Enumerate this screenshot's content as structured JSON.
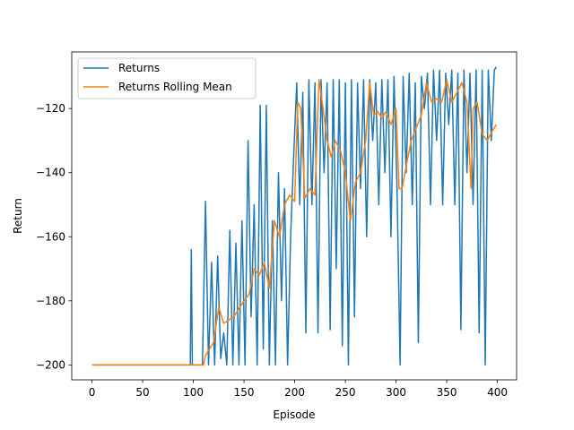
{
  "chart_data": {
    "type": "line",
    "x_label": "Episode",
    "y_label": "Return",
    "xlim": [
      -19.95,
      418.95
    ],
    "ylim": [
      -204.65,
      -102.35
    ],
    "xticks": [
      0,
      50,
      100,
      150,
      200,
      250,
      300,
      350,
      400
    ],
    "yticks": [
      {
        "value": -200,
        "label": "−200"
      },
      {
        "value": -180,
        "label": "−180"
      },
      {
        "value": -160,
        "label": "−160"
      },
      {
        "value": -140,
        "label": "−140"
      },
      {
        "value": -120,
        "label": "−120"
      }
    ],
    "legend": "upper left",
    "series": [
      {
        "name": "Returns",
        "color": "#1f77b4",
        "x": [
          0,
          97,
          98,
          99,
          100,
          103,
          106,
          109,
          112,
          115,
          118,
          121,
          124,
          127,
          130,
          133,
          136,
          139,
          142,
          145,
          148,
          151,
          154,
          157,
          160,
          163,
          166,
          169,
          172,
          175,
          178,
          181,
          184,
          187,
          190,
          193,
          196,
          199,
          202,
          205,
          208,
          211,
          214,
          217,
          220,
          223,
          226,
          229,
          232,
          235,
          238,
          241,
          244,
          247,
          250,
          253,
          256,
          259,
          262,
          265,
          268,
          271,
          274,
          277,
          280,
          283,
          286,
          289,
          292,
          295,
          298,
          301,
          304,
          307,
          310,
          313,
          316,
          319,
          322,
          325,
          328,
          331,
          334,
          337,
          340,
          343,
          346,
          349,
          352,
          355,
          358,
          361,
          364,
          367,
          370,
          373,
          376,
          379,
          382,
          385,
          388,
          391,
          394,
          397,
          399
        ],
        "values": [
          -200,
          -200,
          -164,
          -200,
          -200,
          -200,
          -200,
          -200,
          -149,
          -200,
          -168,
          -200,
          -166,
          -198,
          -190,
          -200,
          -158,
          -200,
          -162,
          -200,
          -155,
          -200,
          -130,
          -185,
          -150,
          -200,
          -119,
          -195,
          -119,
          -200,
          -155,
          -200,
          -140,
          -180,
          -145,
          -200,
          -160,
          -135,
          -112,
          -150,
          -115,
          -190,
          -111,
          -150,
          -112,
          -190,
          -111,
          -140,
          -112,
          -189,
          -111,
          -170,
          -111,
          -194,
          -112,
          -200,
          -111,
          -185,
          -112,
          -145,
          -111,
          -160,
          -111,
          -130,
          -112,
          -150,
          -111,
          -140,
          -111,
          -160,
          -110,
          -145,
          -200,
          -110,
          -140,
          -109,
          -150,
          -112,
          -193,
          -110,
          -120,
          -109,
          -150,
          -108,
          -130,
          -108,
          -150,
          -109,
          -125,
          -108,
          -150,
          -109,
          -189,
          -108,
          -140,
          -109,
          -150,
          -108,
          -190,
          -108,
          -200,
          -108,
          -130,
          -108,
          -107
        ]
      },
      {
        "name": "Returns Rolling Mean",
        "color": "#ff7f0e",
        "x": [
          0,
          110,
          112,
          120,
          125,
          130,
          140,
          150,
          155,
          160,
          165,
          170,
          175,
          180,
          185,
          190,
          195,
          200,
          203,
          206,
          210,
          215,
          220,
          224,
          228,
          232,
          236,
          240,
          245,
          250,
          255,
          260,
          265,
          270,
          274,
          278,
          282,
          286,
          290,
          295,
          300,
          303,
          306,
          310,
          315,
          320,
          325,
          330,
          335,
          340,
          345,
          350,
          355,
          360,
          365,
          370,
          374,
          376,
          380,
          385,
          390,
          395,
          399
        ],
        "values": [
          -200,
          -200,
          -197,
          -193,
          -182,
          -187,
          -185,
          -180,
          -178,
          -170,
          -172,
          -168,
          -176,
          -155,
          -160,
          -150,
          -147,
          -149,
          -118,
          -120,
          -148,
          -145,
          -147,
          -111,
          -120,
          -130,
          -135,
          -130,
          -133,
          -140,
          -155,
          -143,
          -140,
          -130,
          -112,
          -122,
          -121,
          -123,
          -121,
          -125,
          -120,
          -145,
          -145,
          -138,
          -130,
          -126,
          -122,
          -112,
          -118,
          -117,
          -118,
          -111,
          -118,
          -115,
          -112,
          -118,
          -145,
          -120,
          -118,
          -128,
          -130,
          -127,
          -125
        ]
      }
    ]
  }
}
